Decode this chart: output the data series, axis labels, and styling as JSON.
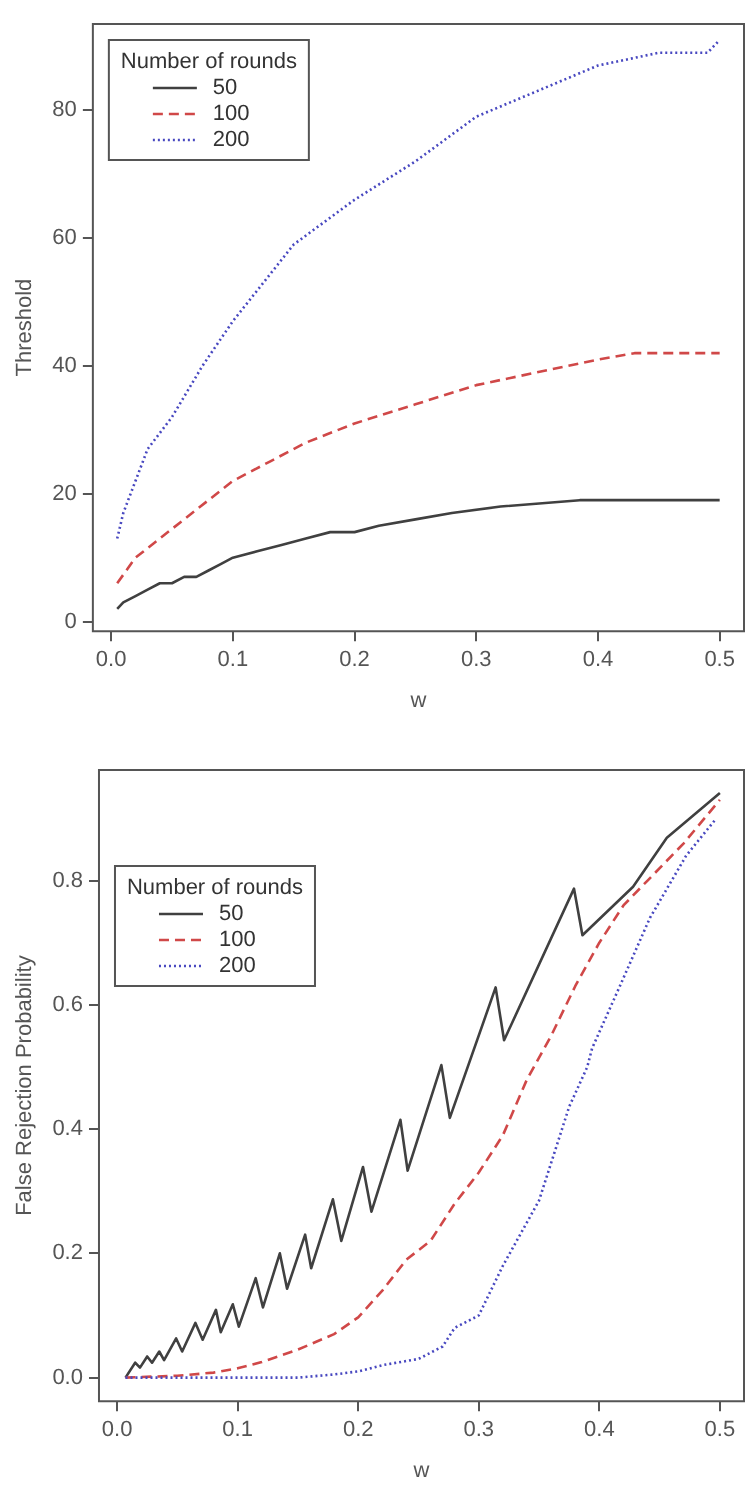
{
  "chart_data": [
    {
      "type": "line",
      "xlabel": "w",
      "ylabel": "Threshold",
      "legend": "top left",
      "legend_title": "Number of rounds",
      "grid": false,
      "marker": "none",
      "xlim": [
        -0.015,
        0.52
      ],
      "xticks": [
        {
          "value": 0,
          "label": "0.0"
        },
        0.1,
        0.2,
        0.3,
        0.4,
        0.5
      ],
      "ylim": [
        -1.5,
        93.5
      ],
      "yticks": [
        0,
        20,
        40,
        60,
        80
      ],
      "series": [
        {
          "name": "50",
          "color": "#404040",
          "line_style": "solid",
          "x": [
            0.005,
            0.01,
            0.02,
            0.03,
            0.04,
            0.05,
            0.06,
            0.07,
            0.08,
            0.09,
            0.1,
            0.12,
            0.14,
            0.16,
            0.18,
            0.2,
            0.22,
            0.25,
            0.28,
            0.32,
            0.385,
            0.5
          ],
          "values": [
            2,
            3,
            4,
            5,
            6,
            6,
            7,
            7,
            8,
            9,
            10,
            11,
            12,
            13,
            14,
            14,
            15,
            16,
            17,
            18,
            19,
            19
          ]
        },
        {
          "name": "100",
          "color": "#d04848",
          "line_style": "dashed",
          "x": [
            0.005,
            0.02,
            0.04,
            0.06,
            0.08,
            0.1,
            0.13,
            0.16,
            0.2,
            0.25,
            0.3,
            0.35,
            0.4,
            0.43,
            0.5
          ],
          "values": [
            6,
            10,
            13,
            16,
            19,
            22,
            25,
            28,
            31,
            34,
            37,
            39,
            41,
            42,
            42
          ]
        },
        {
          "name": "200",
          "color": "#4848c0",
          "line_style": "dotted",
          "x": [
            0.005,
            0.01,
            0.02,
            0.03,
            0.05,
            0.075,
            0.1,
            0.15,
            0.2,
            0.25,
            0.3,
            0.35,
            0.4,
            0.45,
            0.49,
            0.5
          ],
          "values": [
            13,
            17,
            22,
            27,
            32,
            40,
            47,
            59,
            66,
            72,
            79,
            83,
            87,
            89,
            89,
            91
          ]
        }
      ]
    },
    {
      "type": "line",
      "xlabel": "w",
      "ylabel": "False Rejection Probability",
      "legend": "top left",
      "legend_title": "Number of rounds",
      "grid": false,
      "marker": "none",
      "xlim": [
        -0.015,
        0.52
      ],
      "xticks": [
        {
          "value": 0,
          "label": "0.0"
        },
        0.1,
        0.2,
        0.3,
        0.4,
        0.5
      ],
      "ylim": [
        -0.038,
        0.978
      ],
      "yticks": [
        {
          "value": 0,
          "label": "0.0"
        },
        0.2,
        0.4,
        0.6,
        0.8
      ],
      "series": [
        {
          "name": "50",
          "color": "#404040",
          "line_style": "solid",
          "x": [
            0.007,
            0.015,
            0.019,
            0.025,
            0.029,
            0.035,
            0.039,
            0.049,
            0.054,
            0.065,
            0.071,
            0.082,
            0.086,
            0.096,
            0.101,
            0.115,
            0.121,
            0.135,
            0.141,
            0.156,
            0.161,
            0.179,
            0.186,
            0.204,
            0.211,
            0.235,
            0.241,
            0.269,
            0.276,
            0.314,
            0.321,
            0.379,
            0.386,
            0.428,
            0.456,
            0.5
          ],
          "values": [
            0.0,
            0.024,
            0.016,
            0.034,
            0.024,
            0.042,
            0.028,
            0.063,
            0.042,
            0.088,
            0.061,
            0.109,
            0.073,
            0.118,
            0.082,
            0.16,
            0.113,
            0.2,
            0.143,
            0.23,
            0.176,
            0.287,
            0.22,
            0.339,
            0.267,
            0.415,
            0.333,
            0.503,
            0.418,
            0.628,
            0.543,
            0.787,
            0.712,
            0.79,
            0.869,
            0.941
          ]
        },
        {
          "name": "100",
          "color": "#d04848",
          "line_style": "dashed",
          "x": [
            0.007,
            0.05,
            0.08,
            0.1,
            0.12,
            0.15,
            0.18,
            0.2,
            0.22,
            0.24,
            0.26,
            0.28,
            0.3,
            0.32,
            0.34,
            0.36,
            0.38,
            0.4,
            0.42,
            0.44,
            0.47,
            0.5
          ],
          "values": [
            0.0,
            0.003,
            0.008,
            0.015,
            0.025,
            0.045,
            0.07,
            0.097,
            0.14,
            0.19,
            0.22,
            0.28,
            0.33,
            0.39,
            0.48,
            0.55,
            0.63,
            0.7,
            0.76,
            0.8,
            0.86,
            0.93
          ]
        },
        {
          "name": "200",
          "color": "#4848c0",
          "line_style": "dotted",
          "x": [
            0.007,
            0.15,
            0.18,
            0.2,
            0.22,
            0.25,
            0.27,
            0.28,
            0.3,
            0.32,
            0.34,
            0.35,
            0.375,
            0.39,
            0.394,
            0.417,
            0.442,
            0.472,
            0.497
          ],
          "values": [
            0.0,
            0.0,
            0.005,
            0.01,
            0.02,
            0.03,
            0.05,
            0.08,
            0.1,
            0.18,
            0.25,
            0.285,
            0.436,
            0.5,
            0.53,
            0.63,
            0.74,
            0.84,
            0.9
          ]
        }
      ]
    }
  ]
}
